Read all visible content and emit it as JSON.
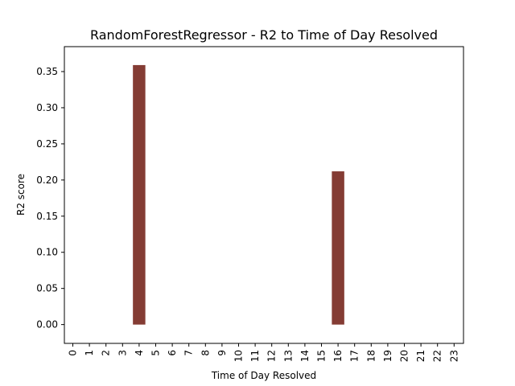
{
  "chart_data": {
    "type": "bar",
    "title": "RandomForestRegressor - R2 to Time of Day Resolved",
    "xlabel": "Time of Day Resolved",
    "ylabel": "R2 score",
    "categories": [
      "0",
      "1",
      "2",
      "3",
      "4",
      "5",
      "6",
      "7",
      "8",
      "9",
      "10",
      "11",
      "12",
      "13",
      "14",
      "15",
      "16",
      "17",
      "18",
      "19",
      "20",
      "21",
      "22",
      "23"
    ],
    "values": [
      0,
      0,
      0,
      0,
      0.359,
      0,
      0,
      0,
      0,
      0,
      0,
      0,
      0,
      0,
      0,
      0,
      0.212,
      0,
      0,
      0,
      0,
      0,
      0,
      0
    ],
    "ylim": [
      -0.026,
      0.3845
    ],
    "yticks": [
      0.0,
      0.05,
      0.1,
      0.15,
      0.2,
      0.25,
      0.3,
      0.35
    ],
    "ytick_labels": [
      "0.00",
      "0.05",
      "0.10",
      "0.15",
      "0.20",
      "0.25",
      "0.30",
      "0.35"
    ],
    "bar_color": "#843c34",
    "grid": false,
    "legend": "none"
  }
}
